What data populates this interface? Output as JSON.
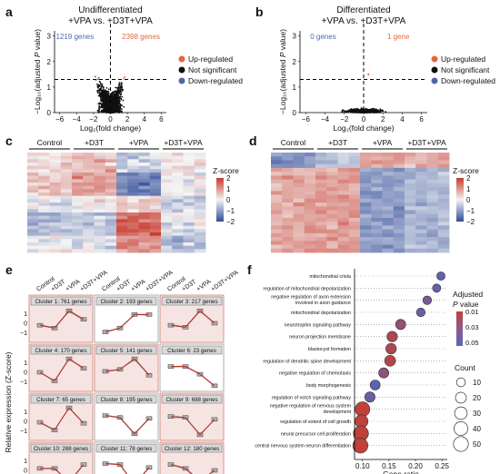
{
  "colors": {
    "up": "#e2683a",
    "down": "#4a69ad",
    "ns": "#111111",
    "heat_hi": "#c83a2d",
    "heat_mid": "#f4f4f4",
    "heat_lo": "#2f4b9a",
    "cluster_fill": "#f6e4e2",
    "cluster_border": "#d87b72",
    "trend": "#b03a2e"
  },
  "panels": {
    "a": {
      "letter": "a",
      "title_line1": "Undifferentiated",
      "title_line2": "+VPA vs. +D3T+VPA",
      "down_count": "1219 genes",
      "up_count": "2398 genes",
      "x_ticks": [
        "−6",
        "−4",
        "−2",
        "0",
        "2",
        "4",
        "6"
      ],
      "y_ticks": [
        "0",
        "1",
        "2",
        "3"
      ]
    },
    "b": {
      "letter": "b",
      "title_line1": "Differentiated",
      "title_line2": "+VPA vs. +D3T+VPA",
      "down_count": "0 genes",
      "up_count": "1 gene",
      "x_ticks": [
        "−6",
        "−4",
        "−2",
        "0",
        "2",
        "4",
        "6"
      ],
      "y_ticks": [
        "0",
        "1",
        "2",
        "3"
      ]
    },
    "volcano_axis": {
      "x_label": "Log₂(fold change)",
      "y_label_pre": "−Log₁₀(adjusted ",
      "y_label_p": "P",
      "y_label_post": " value)"
    },
    "legend": [
      "Up-regulated",
      "Not significant",
      "Down-regulated"
    ],
    "c": {
      "letter": "c",
      "groups": [
        "Control",
        "+D3T",
        "+VPA",
        "+D3T+VPA"
      ],
      "scale_title": "Z-score",
      "scale_ticks": [
        "2",
        "1",
        "0",
        "−1",
        "−2"
      ]
    },
    "d": {
      "letter": "d",
      "groups": [
        "Control",
        "+D3T",
        "+VPA",
        "+D3T+VPA"
      ],
      "scale_title": "Z-score",
      "scale_ticks": [
        "2",
        "1",
        "0",
        "−1",
        "−2"
      ]
    },
    "e": {
      "letter": "e",
      "conditions": [
        "Control",
        "+D3T",
        "+VPA",
        "+D3T+VPA"
      ],
      "y_label": "Relative expression (Z-score)",
      "y_ticks": [
        "1",
        "0",
        "−1"
      ],
      "clusters": [
        {
          "label": "Cluster 1: 761 genes",
          "profile": [
            -0.2,
            -0.5,
            1.3,
            0.4
          ],
          "hi": true
        },
        {
          "label": "Cluster 2: 193 genes",
          "profile": [
            -0.9,
            -0.5,
            0.9,
            0.9
          ],
          "hi": false
        },
        {
          "label": "Cluster 3: 217 genes",
          "profile": [
            -0.2,
            -0.4,
            1.3,
            0.0
          ],
          "hi": true
        },
        {
          "label": "Cluster 4: 170 genes",
          "profile": [
            0.0,
            -0.9,
            1.4,
            0.4
          ],
          "hi": true
        },
        {
          "label": "Cluster 5: 141 genes",
          "profile": [
            0.1,
            0.3,
            1.4,
            -0.3
          ],
          "hi": true
        },
        {
          "label": "Cluster 6: 23 genes",
          "profile": [
            0.6,
            0.6,
            -0.2,
            -1.4
          ],
          "hi": false
        },
        {
          "label": "Cluster 7: 65 genes",
          "profile": [
            -0.1,
            -0.9,
            1.4,
            -0.2
          ],
          "hi": true
        },
        {
          "label": "Cluster 8: 195 genes",
          "profile": [
            0.6,
            0.4,
            -1.3,
            0.3
          ],
          "hi": false
        },
        {
          "label": "Cluster 9: 688 genes",
          "profile": [
            0.5,
            0.4,
            -1.4,
            0.2
          ],
          "hi": true
        },
        {
          "label": "Cluster 10: 288 genes",
          "profile": [
            0.2,
            0.2,
            -1.2,
            0.6
          ],
          "hi": true
        },
        {
          "label": "Cluster 11: 78 genes",
          "profile": [
            0.7,
            0.6,
            -1.5,
            0.3
          ],
          "hi": false
        },
        {
          "label": "Cluster 12: 180 genes",
          "profile": [
            0.6,
            0.2,
            -1.1,
            0.0
          ],
          "hi": true
        }
      ]
    },
    "f": {
      "letter": "f",
      "x_label": "Gene ratio",
      "x_ticks": [
        "0.10",
        "0.15",
        "0.20",
        "0.25"
      ],
      "legend_title_1": "Adjusted",
      "legend_title_p": "P",
      "legend_title_2": " value",
      "pval_ticks": [
        "0.01",
        "0.03",
        "0.05"
      ],
      "count_title": "Count",
      "count_ticks": [
        "10",
        "20",
        "30",
        "40",
        "50"
      ]
    }
  },
  "chart_data": {
    "type": "scatter",
    "xlabel": "Gene ratio",
    "xlim": [
      0.085,
      0.26
    ],
    "terms": [
      {
        "name": "mitochondrial crista",
        "ratio": 0.248,
        "padj": 0.048,
        "count": 8
      },
      {
        "name": "regulation of mitochondrial depolarization",
        "ratio": 0.24,
        "padj": 0.046,
        "count": 8
      },
      {
        "name_lines": [
          "negative regulation of axon extension",
          "involved in axon guidance"
        ],
        "name": "negative regulation of axon extension involved in axon guidance",
        "ratio": 0.222,
        "padj": 0.04,
        "count": 9
      },
      {
        "name": "mitochondrial depolarization",
        "ratio": 0.21,
        "padj": 0.045,
        "count": 9
      },
      {
        "name": "neurotrophin signaling pathway",
        "ratio": 0.172,
        "padj": 0.028,
        "count": 16
      },
      {
        "name": "neuron projection membrane",
        "ratio": 0.156,
        "padj": 0.018,
        "count": 18
      },
      {
        "name": "blastocyst formation",
        "ratio": 0.154,
        "padj": 0.017,
        "count": 18
      },
      {
        "name": "regulation of dendritic spine development",
        "ratio": 0.152,
        "padj": 0.014,
        "count": 20
      },
      {
        "name": "negative regulation of chemotaxis",
        "ratio": 0.14,
        "padj": 0.03,
        "count": 16
      },
      {
        "name": "body morphogenesis",
        "ratio": 0.124,
        "padj": 0.048,
        "count": 15
      },
      {
        "name": "regulation of notch signaling pathway",
        "ratio": 0.114,
        "padj": 0.043,
        "count": 17
      },
      {
        "name_lines": [
          "negative regulation of nervous system",
          "development"
        ],
        "name": "negative regulation of nervous system development",
        "ratio": 0.1,
        "padj": 0.01,
        "count": 48
      },
      {
        "name": "regulation of extent of cell growth",
        "ratio": 0.098,
        "padj": 0.012,
        "count": 34
      },
      {
        "name": "neural precursor cell proliferation",
        "ratio": 0.097,
        "padj": 0.01,
        "count": 52
      },
      {
        "name": "central nervous system neuron differentiation",
        "ratio": 0.096,
        "padj": 0.01,
        "count": 52
      }
    ]
  }
}
